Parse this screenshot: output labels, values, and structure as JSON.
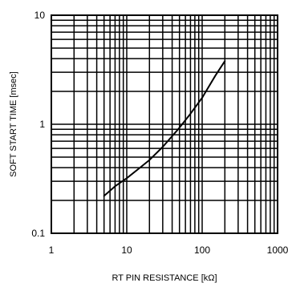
{
  "chart_data": {
    "type": "line",
    "title": "",
    "xlabel": "RT PIN RESISTANCE [kΩ]",
    "ylabel": "SOFT START TIME [msec]",
    "x_scale": "log",
    "y_scale": "log",
    "xlim": [
      1,
      1000
    ],
    "ylim": [
      0.1,
      10
    ],
    "x_ticks": [
      "1",
      "10",
      "100",
      "1000"
    ],
    "y_ticks": [
      "0.1",
      "1",
      "10"
    ],
    "grid": true,
    "legend": "none",
    "series": [
      {
        "x": [
          5,
          7,
          10,
          15,
          20,
          30,
          50,
          70,
          100,
          150,
          200
        ],
        "y": [
          0.22,
          0.27,
          0.32,
          0.4,
          0.47,
          0.62,
          0.93,
          1.25,
          1.75,
          2.8,
          3.8
        ],
        "color": "#000000"
      }
    ]
  }
}
